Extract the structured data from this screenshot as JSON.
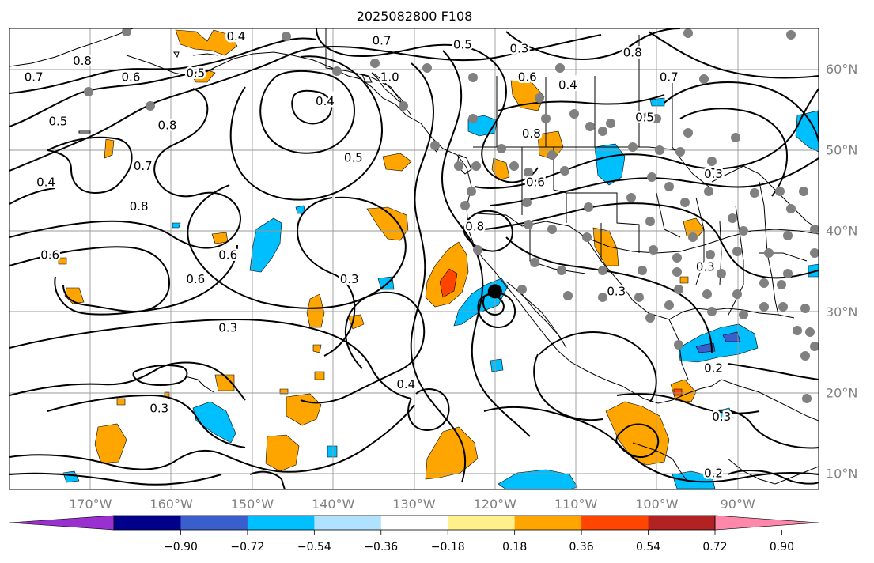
{
  "title": "2025082800 F108",
  "lat_labels": [
    "60°N",
    "50°N",
    "40°N",
    "30°N",
    "20°N",
    "10°N"
  ],
  "lat_values": [
    60,
    50,
    40,
    30,
    20,
    10
  ],
  "lon_labels": [
    "170°W",
    "160°W",
    "150°W",
    "140°W",
    "130°W",
    "120°W",
    "110°W",
    "100°W",
    "90°W"
  ],
  "lon_values": [
    -170,
    -160,
    -150,
    -140,
    -130,
    -120,
    -110,
    -100,
    -90
  ],
  "map_extent": {
    "lon": [
      -180,
      -80
    ],
    "lat": [
      8,
      65
    ]
  },
  "colorbar": {
    "tick_labels": [
      "−0.90",
      "−0.72",
      "−0.54",
      "−0.36",
      "−0.18",
      "0.18",
      "0.36",
      "0.54",
      "0.72",
      "0.90"
    ],
    "colors": [
      "#9b30d0",
      "#00008b",
      "#3a5fcd",
      "#00bfff",
      "#b0e2ff",
      "#ffffff",
      "#fff08c",
      "#ffa500",
      "#ff4500",
      "#b22222",
      "#ff88aa"
    ]
  },
  "contour_labels": [
    {
      "text": "0.8",
      "lon": -171,
      "lat": 61
    },
    {
      "text": "0.7",
      "lon": -177,
      "lat": 59
    },
    {
      "text": "0.6",
      "lon": -165,
      "lat": 59
    },
    {
      "text": "0.5",
      "lon": -174,
      "lat": 53.5
    },
    {
      "text": "0.4",
      "lon": -175.5,
      "lat": 46
    },
    {
      "text": "0.7",
      "lon": -163.5,
      "lat": 48
    },
    {
      "text": "0.8",
      "lon": -160.5,
      "lat": 53
    },
    {
      "text": "0.8",
      "lon": -164,
      "lat": 43
    },
    {
      "text": "0.6",
      "lon": -175,
      "lat": 37
    },
    {
      "text": "0.6",
      "lon": -157,
      "lat": 34
    },
    {
      "text": "0.6",
      "lon": -153,
      "lat": 37
    },
    {
      "text": "0.4",
      "lon": -152,
      "lat": 64
    },
    {
      "text": "0.5",
      "lon": -157,
      "lat": 59.5
    },
    {
      "text": "0.4",
      "lon": -141,
      "lat": 56
    },
    {
      "text": "0.5",
      "lon": -137.5,
      "lat": 49
    },
    {
      "text": "1.0",
      "lon": -133,
      "lat": 59
    },
    {
      "text": "0.7",
      "lon": -134,
      "lat": 63.5
    },
    {
      "text": "0.5",
      "lon": -124,
      "lat": 63
    },
    {
      "text": "0.3",
      "lon": -117,
      "lat": 62.5
    },
    {
      "text": "0.6",
      "lon": -116,
      "lat": 59
    },
    {
      "text": "0.4",
      "lon": -111,
      "lat": 58
    },
    {
      "text": "0.8",
      "lon": -115.5,
      "lat": 52
    },
    {
      "text": "0.6",
      "lon": -115,
      "lat": 46
    },
    {
      "text": "0.8",
      "lon": -122.5,
      "lat": 40.5
    },
    {
      "text": "0.3",
      "lon": -138,
      "lat": 34
    },
    {
      "text": "0.3",
      "lon": -105,
      "lat": 32.5
    },
    {
      "text": "0.3",
      "lon": -153,
      "lat": 28
    },
    {
      "text": "0.4",
      "lon": -131,
      "lat": 21
    },
    {
      "text": "0.3",
      "lon": -161.5,
      "lat": 18
    },
    {
      "text": "0.8",
      "lon": -103,
      "lat": 62
    },
    {
      "text": "0.7",
      "lon": -98.5,
      "lat": 59
    },
    {
      "text": "0.5",
      "lon": -101.5,
      "lat": 54
    },
    {
      "text": "0.3",
      "lon": -93,
      "lat": 47
    },
    {
      "text": "0.3",
      "lon": -94,
      "lat": 35.5
    },
    {
      "text": "0.2",
      "lon": -93,
      "lat": 23
    },
    {
      "text": "0.3",
      "lon": -92,
      "lat": 17
    },
    {
      "text": "0.2",
      "lon": -93,
      "lat": 10
    }
  ],
  "storm_center": {
    "lon": -120,
    "lat": 32.5
  }
}
